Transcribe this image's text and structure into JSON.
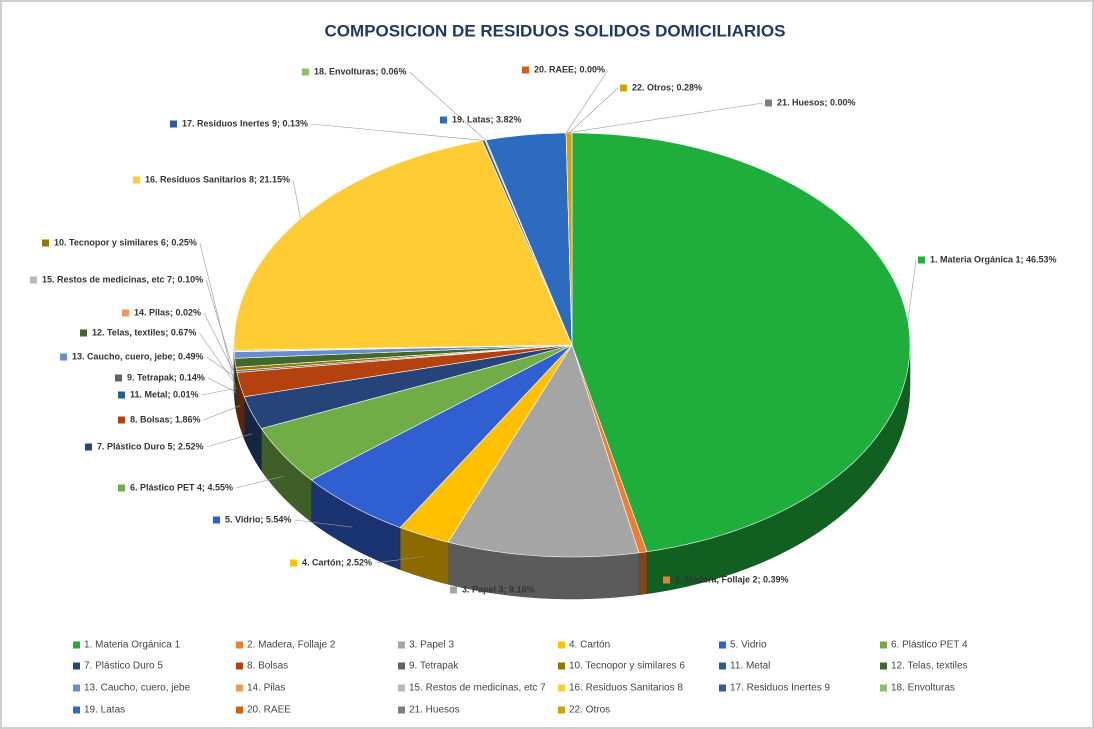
{
  "chart_data": {
    "type": "pie3d",
    "title": "COMPOSICION DE  RESIDUOS SOLIDOS DOMICILIARIOS",
    "categories": [
      "1.  Materia Orgánica 1",
      "2.  Madera, Follaje 2",
      "3.  Papel 3",
      "4.  Cartón",
      "5.  Vidrio",
      "6.  Plástico PET 4",
      "7.  Plástico Duro 5",
      "8.  Bolsas",
      "9.  Tetrapak",
      "10.  Tecnopor y similares 6",
      "11.  Metal",
      "12.  Telas, textiles",
      "13.  Caucho, cuero, jebe",
      "14.  Pilas",
      "15.  Restos de medicinas, etc 7",
      "16.  Residuos Sanitarios 8",
      "17.  Residuos Inertes 9",
      "18.  Envolturas",
      "19.  Latas",
      "20.  RAEE",
      "21.  Huesos",
      "22.  Otros"
    ],
    "values": [
      46.53,
      0.39,
      9.16,
      2.52,
      5.54,
      4.55,
      2.52,
      1.86,
      0.14,
      0.25,
      0.01,
      0.67,
      0.49,
      0.02,
      0.1,
      21.15,
      0.13,
      0.06,
      3.82,
      0.0,
      0.0,
      0.28
    ],
    "value_labels": [
      "1.  Materia Orgánica 1; 46.53%",
      "2.  Madera, Follaje 2; 0.39%",
      "3.  Papel 3; 9.16%",
      "4.  Cartón; 2.52%",
      "5.  Vidrio; 5.54%",
      "6.  Plástico PET 4; 4.55%",
      "7.  Plástico Duro 5; 2.52%",
      "8.  Bolsas; 1.86%",
      "9.  Tetrapak; 0.14%",
      "10.  Tecnopor y similares 6; 0.25%",
      "11.  Metal; 0.01%",
      "12.  Telas, textiles; 0.67%",
      "13.  Caucho, cuero, jebe; 0.49%",
      "14.  Pilas; 0.02%",
      "15.  Restos de medicinas, etc 7; 0.10%",
      "16.  Residuos Sanitarios 8; 21.15%",
      "17.  Residuos Inertes 9; 0.13%",
      "18.  Envolturas; 0.06%",
      "19.  Latas; 3.82%",
      "20.  RAEE; 0.00%",
      "21.  Huesos; 0.00%",
      "22.  Otros; 0.28%"
    ],
    "colors": [
      "#1fae3c",
      "#ed7d31",
      "#a5a5a5",
      "#ffc000",
      "#2f5fd0",
      "#70ad47",
      "#264478",
      "#b3420e",
      "#636363",
      "#997300",
      "#255e91",
      "#43682b",
      "#698ed0",
      "#f1975a",
      "#b7b7b7",
      "#ffcd33",
      "#335aa1",
      "#8cc168",
      "#2c6bbf",
      "#d26012",
      "#7f7f7f",
      "#d6a100"
    ],
    "legend": "bottom"
  }
}
